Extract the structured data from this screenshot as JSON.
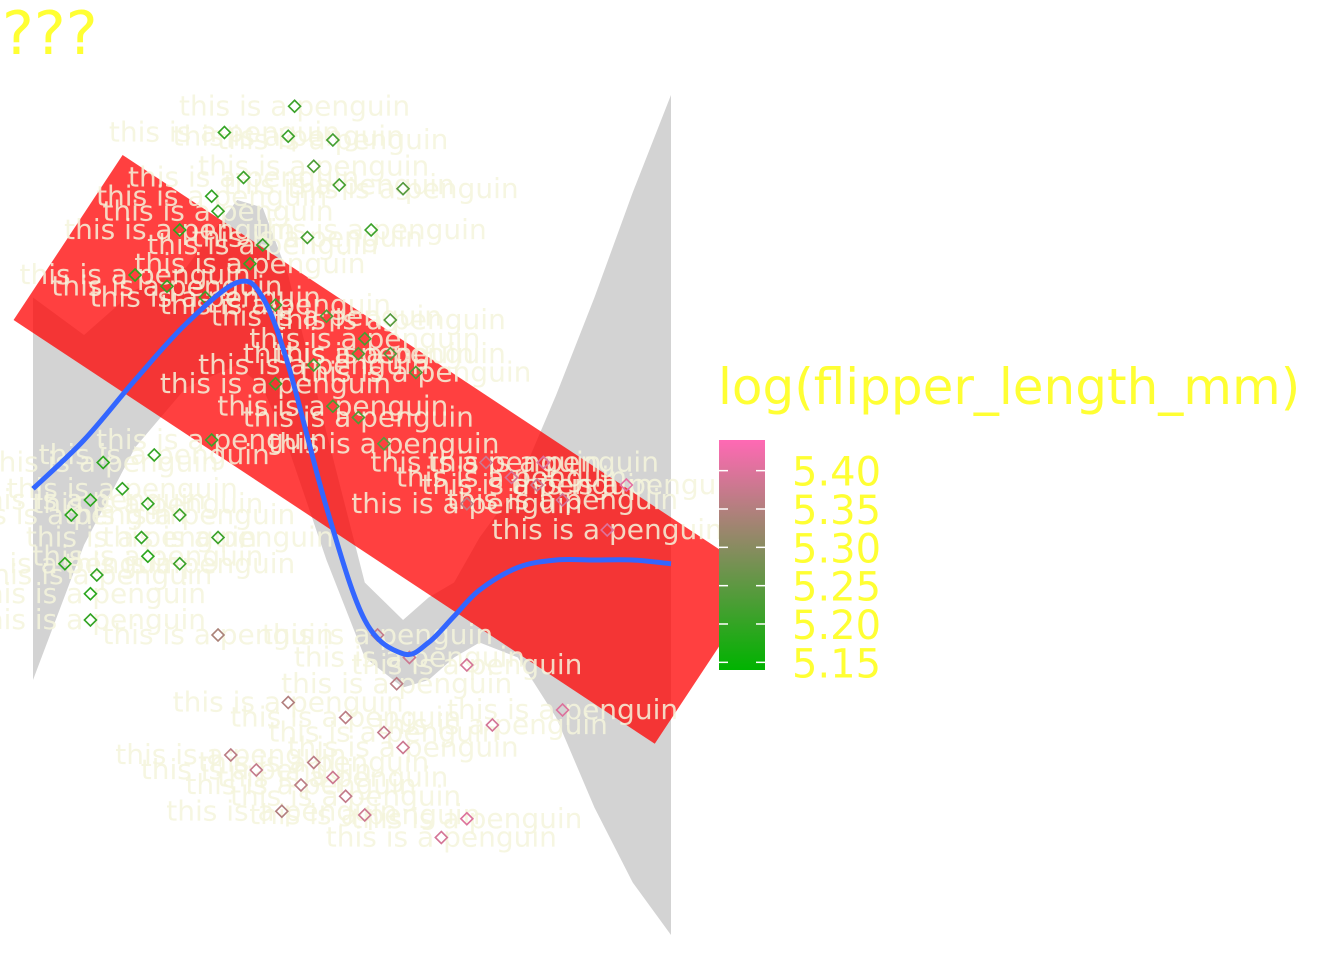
{
  "chart_data": {
    "type": "scatter",
    "title": "???",
    "xlabel": "",
    "ylabel": "",
    "point_label": "this is a penguin",
    "label_color": "#f5f5dc",
    "point_shape": "diamond",
    "smooth_color": "#3366ff",
    "ribbon_color": "#d3d3d3",
    "band_color": "#ff0000",
    "legend": {
      "title": "log(flipper_length_mm)",
      "low_color": "#00b300",
      "high_color": "#ff69b4",
      "range": [
        5.14,
        5.44
      ],
      "ticks": [
        5.15,
        5.2,
        5.25,
        5.3,
        5.35,
        5.4
      ],
      "tick_labels": [
        "5.15",
        "5.20",
        "5.25",
        "5.30",
        "5.35",
        "5.40"
      ],
      "position": "right"
    },
    "xlim": [
      0,
      1
    ],
    "ylim": [
      0,
      1
    ],
    "smooth": {
      "x": [
        0.0,
        0.08,
        0.16,
        0.24,
        0.32,
        0.36,
        0.4,
        0.46,
        0.52,
        0.58,
        0.62,
        0.66,
        0.7,
        0.76,
        0.82,
        0.88,
        0.94,
        1.0
      ],
      "y": [
        0.475,
        0.54,
        0.62,
        0.695,
        0.75,
        0.73,
        0.64,
        0.45,
        0.3,
        0.255,
        0.27,
        0.305,
        0.34,
        0.37,
        0.38,
        0.38,
        0.38,
        0.375
      ],
      "lo": [
        0.22,
        0.4,
        0.53,
        0.61,
        0.64,
        0.61,
        0.53,
        0.38,
        0.25,
        0.21,
        0.22,
        0.25,
        0.27,
        0.25,
        0.17,
        0.05,
        -0.05,
        -0.12
      ],
      "hi": [
        0.73,
        0.68,
        0.74,
        0.77,
        0.86,
        0.85,
        0.76,
        0.55,
        0.35,
        0.3,
        0.33,
        0.35,
        0.41,
        0.48,
        0.6,
        0.73,
        0.87,
        1.0
      ]
    },
    "band": {
      "start": [
        0.055,
        0.81
      ],
      "end": [
        1.06,
        0.245
      ],
      "width": 0.31,
      "opacity_inner": 0.75
    },
    "points": [
      {
        "x": 0.41,
        "y": 0.985,
        "v": 5.21
      },
      {
        "x": 0.3,
        "y": 0.95,
        "v": 5.2
      },
      {
        "x": 0.4,
        "y": 0.945,
        "v": 5.21
      },
      {
        "x": 0.47,
        "y": 0.94,
        "v": 5.22
      },
      {
        "x": 0.44,
        "y": 0.905,
        "v": 5.23
      },
      {
        "x": 0.33,
        "y": 0.89,
        "v": 5.21
      },
      {
        "x": 0.28,
        "y": 0.865,
        "v": 5.2
      },
      {
        "x": 0.48,
        "y": 0.88,
        "v": 5.22
      },
      {
        "x": 0.58,
        "y": 0.875,
        "v": 5.24
      },
      {
        "x": 0.29,
        "y": 0.845,
        "v": 5.2
      },
      {
        "x": 0.23,
        "y": 0.82,
        "v": 5.19
      },
      {
        "x": 0.53,
        "y": 0.82,
        "v": 5.21
      },
      {
        "x": 0.43,
        "y": 0.81,
        "v": 5.22
      },
      {
        "x": 0.36,
        "y": 0.8,
        "v": 5.21
      },
      {
        "x": 0.34,
        "y": 0.775,
        "v": 5.2
      },
      {
        "x": 0.16,
        "y": 0.76,
        "v": 5.19
      },
      {
        "x": 0.21,
        "y": 0.745,
        "v": 5.2
      },
      {
        "x": 0.27,
        "y": 0.73,
        "v": 5.21
      },
      {
        "x": 0.38,
        "y": 0.72,
        "v": 5.22
      },
      {
        "x": 0.46,
        "y": 0.705,
        "v": 5.23
      },
      {
        "x": 0.52,
        "y": 0.675,
        "v": 5.22
      },
      {
        "x": 0.56,
        "y": 0.7,
        "v": 5.24
      },
      {
        "x": 0.51,
        "y": 0.655,
        "v": 5.23
      },
      {
        "x": 0.44,
        "y": 0.64,
        "v": 5.22
      },
      {
        "x": 0.38,
        "y": 0.615,
        "v": 5.21
      },
      {
        "x": 0.47,
        "y": 0.585,
        "v": 5.22
      },
      {
        "x": 0.51,
        "y": 0.57,
        "v": 5.23
      },
      {
        "x": 0.55,
        "y": 0.535,
        "v": 5.24
      },
      {
        "x": 0.28,
        "y": 0.54,
        "v": 5.21
      },
      {
        "x": 0.19,
        "y": 0.52,
        "v": 5.2
      },
      {
        "x": 0.11,
        "y": 0.51,
        "v": 5.19
      },
      {
        "x": 0.14,
        "y": 0.475,
        "v": 5.2
      },
      {
        "x": 0.09,
        "y": 0.46,
        "v": 5.19
      },
      {
        "x": 0.06,
        "y": 0.44,
        "v": 5.19
      },
      {
        "x": 0.18,
        "y": 0.455,
        "v": 5.2
      },
      {
        "x": 0.23,
        "y": 0.44,
        "v": 5.21
      },
      {
        "x": 0.29,
        "y": 0.41,
        "v": 5.21
      },
      {
        "x": 0.17,
        "y": 0.41,
        "v": 5.2
      },
      {
        "x": 0.18,
        "y": 0.385,
        "v": 5.19
      },
      {
        "x": 0.23,
        "y": 0.375,
        "v": 5.21
      },
      {
        "x": 0.05,
        "y": 0.375,
        "v": 5.19
      },
      {
        "x": 0.1,
        "y": 0.36,
        "v": 5.2
      },
      {
        "x": 0.09,
        "y": 0.335,
        "v": 5.19
      },
      {
        "x": 0.09,
        "y": 0.3,
        "v": 5.2
      },
      {
        "x": 0.56,
        "y": 0.655,
        "v": 5.24
      },
      {
        "x": 0.6,
        "y": 0.63,
        "v": 5.23
      },
      {
        "x": 0.71,
        "y": 0.51,
        "v": 5.38
      },
      {
        "x": 0.8,
        "y": 0.51,
        "v": 5.4
      },
      {
        "x": 0.75,
        "y": 0.49,
        "v": 5.39
      },
      {
        "x": 0.79,
        "y": 0.48,
        "v": 5.38
      },
      {
        "x": 0.93,
        "y": 0.48,
        "v": 5.41
      },
      {
        "x": 0.83,
        "y": 0.46,
        "v": 5.39
      },
      {
        "x": 0.68,
        "y": 0.455,
        "v": 5.36
      },
      {
        "x": 0.9,
        "y": 0.42,
        "v": 5.4
      },
      {
        "x": 0.54,
        "y": 0.28,
        "v": 5.37
      },
      {
        "x": 0.59,
        "y": 0.25,
        "v": 5.38
      },
      {
        "x": 0.68,
        "y": 0.24,
        "v": 5.39
      },
      {
        "x": 0.57,
        "y": 0.215,
        "v": 5.36
      },
      {
        "x": 0.83,
        "y": 0.18,
        "v": 5.4
      },
      {
        "x": 0.72,
        "y": 0.16,
        "v": 5.39
      },
      {
        "x": 0.4,
        "y": 0.19,
        "v": 5.35
      },
      {
        "x": 0.49,
        "y": 0.17,
        "v": 5.36
      },
      {
        "x": 0.55,
        "y": 0.15,
        "v": 5.37
      },
      {
        "x": 0.58,
        "y": 0.13,
        "v": 5.38
      },
      {
        "x": 0.44,
        "y": 0.11,
        "v": 5.36
      },
      {
        "x": 0.35,
        "y": 0.1,
        "v": 5.37
      },
      {
        "x": 0.47,
        "y": 0.09,
        "v": 5.38
      },
      {
        "x": 0.42,
        "y": 0.08,
        "v": 5.36
      },
      {
        "x": 0.49,
        "y": 0.065,
        "v": 5.37
      },
      {
        "x": 0.52,
        "y": 0.04,
        "v": 5.38
      },
      {
        "x": 0.68,
        "y": 0.035,
        "v": 5.4
      },
      {
        "x": 0.64,
        "y": 0.01,
        "v": 5.39
      },
      {
        "x": 0.39,
        "y": 0.045,
        "v": 5.35
      },
      {
        "x": 0.31,
        "y": 0.12,
        "v": 5.36
      },
      {
        "x": 0.29,
        "y": 0.28,
        "v": 5.34
      }
    ]
  }
}
